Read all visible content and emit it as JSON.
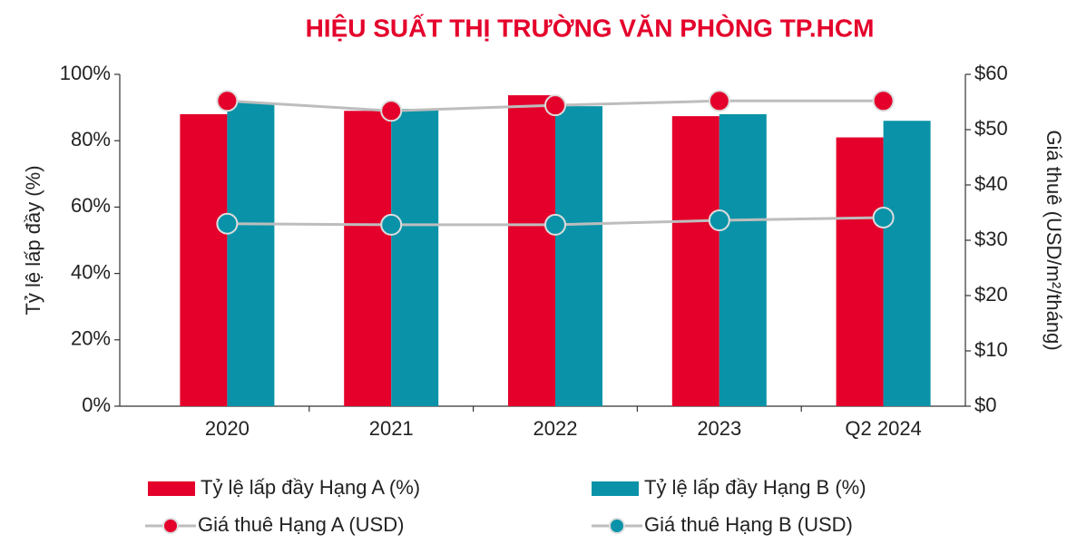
{
  "chart_data": {
    "type": "bar",
    "title": "HIỆU SUẤT THỊ TRƯỜNG VĂN PHÒNG TP.HCM",
    "y_label": "Tỷ lệ lấp đầy (%)",
    "y2_label": "Giá thuê (USD/m²/tháng)",
    "categories": [
      "2020",
      "2021",
      "2022",
      "2023",
      "Q2 2024"
    ],
    "series": [
      {
        "name": "Tỷ lệ lấp đầy Hạng A (%)",
        "type": "bar",
        "color": "#e4002b",
        "values": [
          88,
          89,
          93.7,
          87.4,
          81
        ]
      },
      {
        "name": "Tỷ lệ lấp đầy Hạng B (%)",
        "type": "bar",
        "color": "#0a93a8",
        "values": [
          91.5,
          89.6,
          90.4,
          88,
          86
        ]
      },
      {
        "name": "Giá thuê Hạng A (USD)",
        "type": "line",
        "axis": "y2",
        "color": "#e4002b",
        "values": [
          55.2,
          53.4,
          54.4,
          55.2,
          55.2
        ]
      },
      {
        "name": "Giá thuê Hạng B (USD)",
        "type": "line",
        "axis": "y2",
        "color": "#0a93a8",
        "values": [
          33,
          32.8,
          32.8,
          33.6,
          34.1
        ]
      }
    ],
    "ylim": [
      0,
      100
    ],
    "yticks": [
      {
        "value": 0,
        "label": "0%"
      },
      {
        "value": 20,
        "label": "20%"
      },
      {
        "value": 40,
        "label": "40%"
      },
      {
        "value": 60,
        "label": "60%"
      },
      {
        "value": 80,
        "label": "80%"
      },
      {
        "value": 100,
        "label": "100%"
      }
    ],
    "y2lim": [
      0,
      60
    ],
    "y2ticks": [
      {
        "value": 0,
        "label": "$0"
      },
      {
        "value": 10,
        "label": "$10"
      },
      {
        "value": 20,
        "label": "$20"
      },
      {
        "value": 30,
        "label": "$30"
      },
      {
        "value": 40,
        "label": "$40"
      },
      {
        "value": 50,
        "label": "$50"
      },
      {
        "value": 60,
        "label": "$60"
      }
    ],
    "grid": false
  }
}
